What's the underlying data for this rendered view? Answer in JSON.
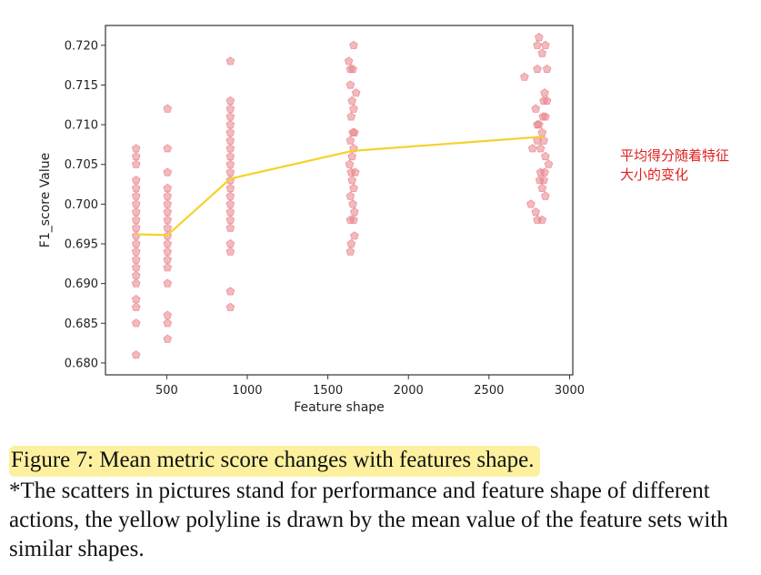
{
  "annotation_text": "平均得分随着特征大小的变化",
  "caption": {
    "title": "Figure 7: Mean metric score changes with features shape.",
    "note": "*The scatters in pictures stand for performance and feature shape of different actions, the yellow polyline is drawn by the mean value of the feature sets with similar shapes."
  },
  "colors": {
    "points": "#e8828a",
    "mean_line": "#f5d22a",
    "frame": "#333333"
  },
  "chart_data": {
    "type": "scatter",
    "title": "",
    "xlabel": "Feature shape",
    "ylabel": "F1_score Value",
    "xlim": [
      120,
      3020
    ],
    "ylim": [
      0.6785,
      0.7225
    ],
    "xticks": [
      500,
      1000,
      1500,
      2000,
      2500,
      3000
    ],
    "xtick_labels": [
      "500",
      "1000",
      "1500",
      "2000",
      "2500",
      "3000"
    ],
    "yticks": [
      0.68,
      0.685,
      0.69,
      0.695,
      0.7,
      0.705,
      0.71,
      0.715,
      0.72
    ],
    "ytick_labels": [
      "0.680",
      "0.685",
      "0.690",
      "0.695",
      "0.700",
      "0.705",
      "0.710",
      "0.715",
      "0.720"
    ],
    "grid": false,
    "marker": "pentagon",
    "scatter_points": [
      [
        310,
        0.707
      ],
      [
        310,
        0.706
      ],
      [
        310,
        0.705
      ],
      [
        310,
        0.703
      ],
      [
        310,
        0.702
      ],
      [
        310,
        0.701
      ],
      [
        310,
        0.7
      ],
      [
        310,
        0.699
      ],
      [
        310,
        0.698
      ],
      [
        310,
        0.697
      ],
      [
        310,
        0.696
      ],
      [
        310,
        0.695
      ],
      [
        310,
        0.694
      ],
      [
        310,
        0.693
      ],
      [
        310,
        0.692
      ],
      [
        310,
        0.691
      ],
      [
        310,
        0.69
      ],
      [
        310,
        0.688
      ],
      [
        310,
        0.687
      ],
      [
        310,
        0.685
      ],
      [
        310,
        0.681
      ],
      [
        505,
        0.712
      ],
      [
        505,
        0.707
      ],
      [
        505,
        0.704
      ],
      [
        505,
        0.702
      ],
      [
        505,
        0.701
      ],
      [
        505,
        0.7
      ],
      [
        505,
        0.699
      ],
      [
        505,
        0.698
      ],
      [
        505,
        0.697
      ],
      [
        505,
        0.696
      ],
      [
        505,
        0.695
      ],
      [
        505,
        0.694
      ],
      [
        505,
        0.693
      ],
      [
        505,
        0.692
      ],
      [
        505,
        0.69
      ],
      [
        505,
        0.686
      ],
      [
        505,
        0.685
      ],
      [
        505,
        0.683
      ],
      [
        895,
        0.718
      ],
      [
        895,
        0.713
      ],
      [
        895,
        0.712
      ],
      [
        895,
        0.711
      ],
      [
        895,
        0.71
      ],
      [
        895,
        0.709
      ],
      [
        895,
        0.708
      ],
      [
        895,
        0.707
      ],
      [
        895,
        0.706
      ],
      [
        895,
        0.705
      ],
      [
        895,
        0.704
      ],
      [
        895,
        0.703
      ],
      [
        895,
        0.702
      ],
      [
        895,
        0.701
      ],
      [
        895,
        0.7
      ],
      [
        895,
        0.699
      ],
      [
        895,
        0.698
      ],
      [
        895,
        0.697
      ],
      [
        895,
        0.695
      ],
      [
        895,
        0.694
      ],
      [
        895,
        0.689
      ],
      [
        895,
        0.687
      ],
      [
        1630,
        0.718
      ],
      [
        1640,
        0.717
      ],
      [
        1660,
        0.72
      ],
      [
        1655,
        0.717
      ],
      [
        1675,
        0.714
      ],
      [
        1640,
        0.715
      ],
      [
        1650,
        0.713
      ],
      [
        1660,
        0.712
      ],
      [
        1645,
        0.711
      ],
      [
        1655,
        0.709
      ],
      [
        1665,
        0.709
      ],
      [
        1640,
        0.708
      ],
      [
        1660,
        0.707
      ],
      [
        1650,
        0.706
      ],
      [
        1635,
        0.705
      ],
      [
        1670,
        0.704
      ],
      [
        1645,
        0.704
      ],
      [
        1650,
        0.703
      ],
      [
        1660,
        0.702
      ],
      [
        1640,
        0.701
      ],
      [
        1655,
        0.7
      ],
      [
        1665,
        0.699
      ],
      [
        1640,
        0.698
      ],
      [
        1660,
        0.698
      ],
      [
        1665,
        0.696
      ],
      [
        1645,
        0.695
      ],
      [
        1640,
        0.694
      ],
      [
        2720,
        0.716
      ],
      [
        2770,
        0.707
      ],
      [
        2790,
        0.712
      ],
      [
        2800,
        0.71
      ],
      [
        2810,
        0.721
      ],
      [
        2800,
        0.72
      ],
      [
        2800,
        0.717
      ],
      [
        2830,
        0.719
      ],
      [
        2850,
        0.72
      ],
      [
        2860,
        0.717
      ],
      [
        2845,
        0.714
      ],
      [
        2840,
        0.713
      ],
      [
        2860,
        0.713
      ],
      [
        2835,
        0.711
      ],
      [
        2850,
        0.711
      ],
      [
        2810,
        0.71
      ],
      [
        2830,
        0.709
      ],
      [
        2800,
        0.708
      ],
      [
        2840,
        0.708
      ],
      [
        2820,
        0.707
      ],
      [
        2850,
        0.706
      ],
      [
        2870,
        0.705
      ],
      [
        2820,
        0.704
      ],
      [
        2845,
        0.704
      ],
      [
        2815,
        0.703
      ],
      [
        2840,
        0.703
      ],
      [
        2830,
        0.702
      ],
      [
        2850,
        0.701
      ],
      [
        2760,
        0.7
      ],
      [
        2790,
        0.699
      ],
      [
        2800,
        0.698
      ],
      [
        2830,
        0.698
      ]
    ],
    "series": [
      {
        "type": "line",
        "x": [
          310,
          505,
          895,
          1650,
          2840
        ],
        "values": [
          0.6962,
          0.6961,
          0.7032,
          0.7067,
          0.7085
        ]
      }
    ]
  }
}
